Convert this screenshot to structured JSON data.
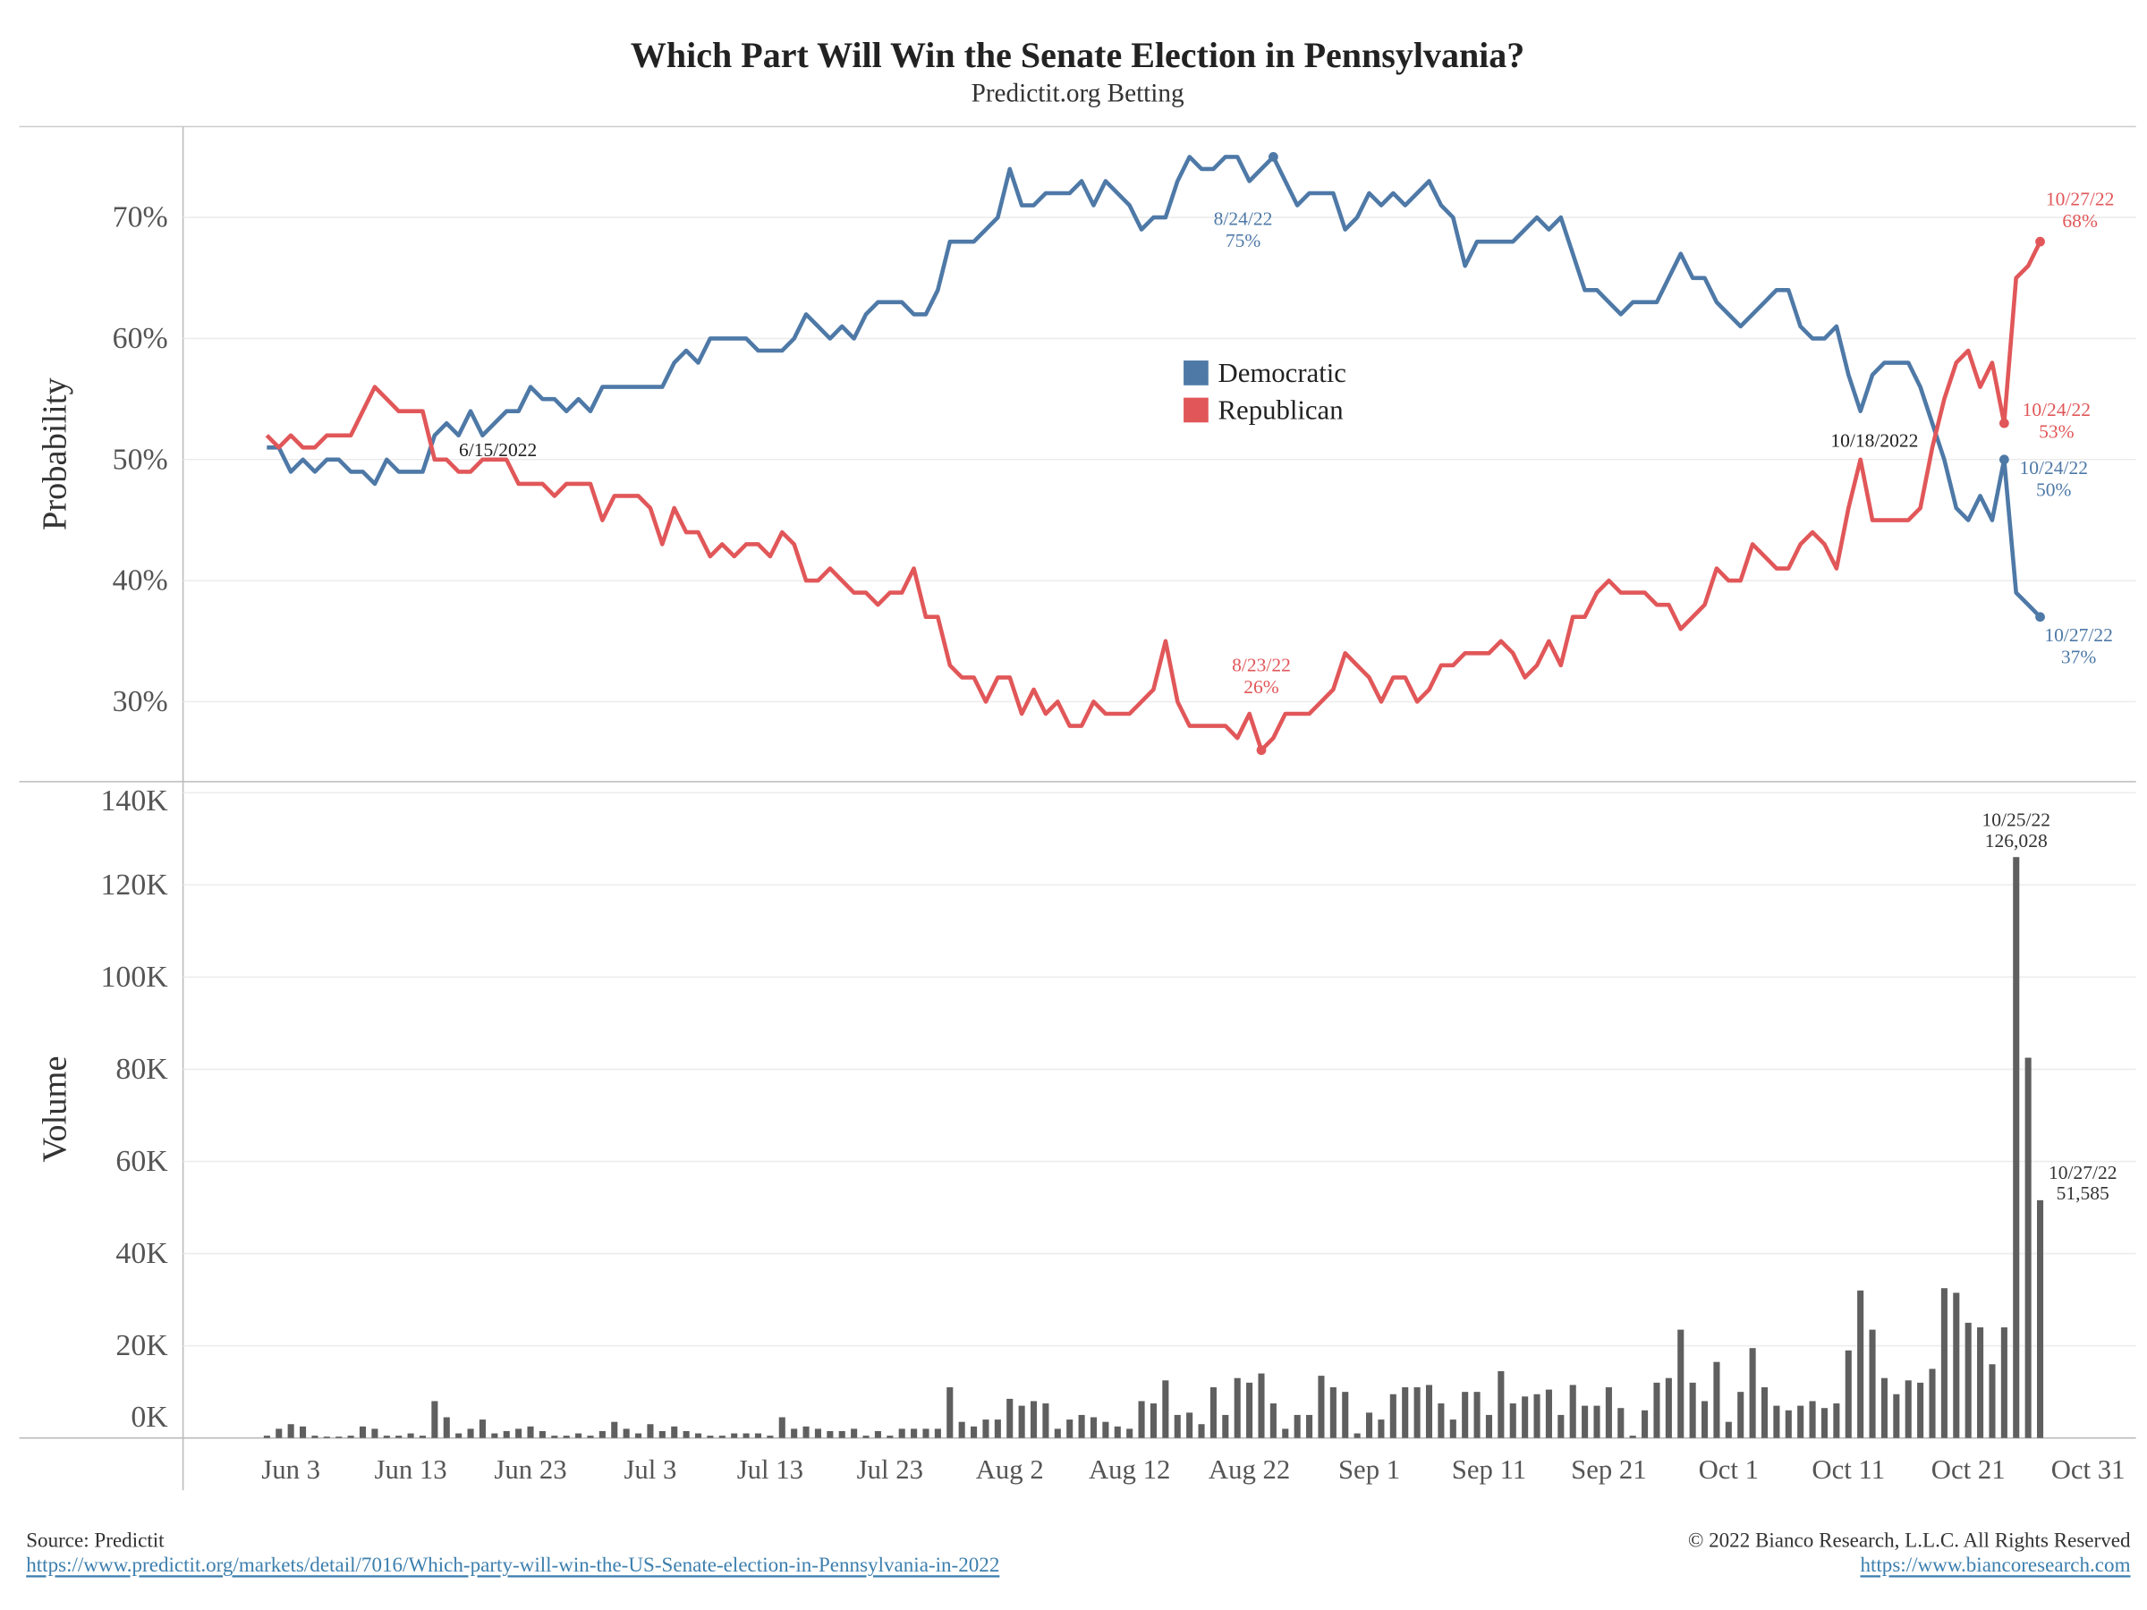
{
  "title": "Which Part Will Win the Senate Election in Pennsylvania?",
  "subtitle": "Predictit.org Betting",
  "source": "Source: Predictit",
  "source_url": "https://www.predictit.org/markets/detail/7016/Which-party-will-win-the-US-Senate-election-in-Pennsylvania-in-2022",
  "copyright": "© 2022 Bianco Research, L.L.C. All Rights Reserved",
  "site_url": "https://www.biancoresearch.com",
  "chart_data": [
    {
      "type": "line",
      "ylabel": "Probability",
      "legend": "center",
      "grid": true,
      "x": [
        "Jun 1",
        "Jun 2",
        "Jun 3",
        "Jun 4",
        "Jun 5",
        "Jun 6",
        "Jun 7",
        "Jun 8",
        "Jun 9",
        "Jun 10",
        "Jun 11",
        "Jun 12",
        "Jun 13",
        "Jun 14",
        "Jun 15",
        "Jun 16",
        "Jun 17",
        "Jun 18",
        "Jun 19",
        "Jun 20",
        "Jun 21",
        "Jun 22",
        "Jun 23",
        "Jun 24",
        "Jun 25",
        "Jun 26",
        "Jun 27",
        "Jun 28",
        "Jun 29",
        "Jun 30",
        "Jul 1",
        "Jul 2",
        "Jul 3",
        "Jul 4",
        "Jul 5",
        "Jul 6",
        "Jul 7",
        "Jul 8",
        "Jul 9",
        "Jul 10",
        "Jul 11",
        "Jul 12",
        "Jul 13",
        "Jul 14",
        "Jul 15",
        "Jul 16",
        "Jul 17",
        "Jul 18",
        "Jul 19",
        "Jul 20",
        "Jul 21",
        "Jul 22",
        "Jul 23",
        "Jul 24",
        "Jul 25",
        "Jul 26",
        "Jul 27",
        "Jul 28",
        "Jul 29",
        "Jul 30",
        "Jul 31",
        "Aug 1",
        "Aug 2",
        "Aug 3",
        "Aug 4",
        "Aug 5",
        "Aug 6",
        "Aug 7",
        "Aug 8",
        "Aug 9",
        "Aug 10",
        "Aug 11",
        "Aug 12",
        "Aug 13",
        "Aug 14",
        "Aug 15",
        "Aug 16",
        "Aug 17",
        "Aug 18",
        "Aug 19",
        "Aug 20",
        "Aug 21",
        "Aug 22",
        "Aug 23",
        "Aug 24",
        "Aug 25",
        "Aug 26",
        "Aug 27",
        "Aug 28",
        "Aug 29",
        "Aug 30",
        "Aug 31",
        "Sep 1",
        "Sep 2",
        "Sep 3",
        "Sep 4",
        "Sep 5",
        "Sep 6",
        "Sep 7",
        "Sep 8",
        "Sep 9",
        "Sep 10",
        "Sep 11",
        "Sep 12",
        "Sep 13",
        "Sep 14",
        "Sep 15",
        "Sep 16",
        "Sep 17",
        "Sep 18",
        "Sep 19",
        "Sep 20",
        "Sep 21",
        "Sep 22",
        "Sep 23",
        "Sep 24",
        "Sep 25",
        "Sep 26",
        "Sep 27",
        "Sep 28",
        "Sep 29",
        "Sep 30",
        "Oct 1",
        "Oct 2",
        "Oct 3",
        "Oct 4",
        "Oct 5",
        "Oct 6",
        "Oct 7",
        "Oct 8",
        "Oct 9",
        "Oct 10",
        "Oct 11",
        "Oct 12",
        "Oct 13",
        "Oct 14",
        "Oct 15",
        "Oct 16",
        "Oct 17",
        "Oct 18",
        "Oct 19",
        "Oct 20",
        "Oct 21",
        "Oct 22",
        "Oct 23",
        "Oct 24",
        "Oct 25",
        "Oct 26",
        "Oct 27"
      ],
      "xlim": [
        "May 25",
        "Nov 4"
      ],
      "ylim": [
        23.4,
        77.5
      ],
      "yticks": [
        {
          "value": 30,
          "label": "30%"
        },
        {
          "value": 40,
          "label": "40%"
        },
        {
          "value": 50,
          "label": "50%"
        },
        {
          "value": 60,
          "label": "60%"
        },
        {
          "value": 70,
          "label": "70%"
        }
      ],
      "series": [
        {
          "name": "Democratic",
          "color": "#4e79a7",
          "values": [
            51,
            51,
            49,
            50,
            49,
            50,
            50,
            49,
            49,
            48,
            50,
            49,
            49,
            49,
            52,
            53,
            52,
            54,
            52,
            53,
            54,
            54,
            56,
            55,
            55,
            54,
            55,
            54,
            56,
            56,
            56,
            56,
            56,
            56,
            58,
            59,
            58,
            60,
            60,
            60,
            60,
            59,
            59,
            59,
            60,
            62,
            61,
            60,
            61,
            60,
            62,
            63,
            63,
            63,
            62,
            62,
            64,
            68,
            68,
            68,
            69,
            70,
            74,
            71,
            71,
            72,
            72,
            72,
            73,
            71,
            73,
            72,
            71,
            69,
            70,
            70,
            73,
            75,
            74,
            74,
            75,
            75,
            73,
            74,
            75,
            73,
            71,
            72,
            72,
            72,
            69,
            70,
            72,
            71,
            72,
            71,
            72,
            73,
            71,
            70,
            66,
            68,
            68,
            68,
            68,
            69,
            70,
            69,
            70,
            67,
            64,
            64,
            63,
            62,
            63,
            63,
            63,
            65,
            67,
            65,
            65,
            63,
            62,
            61,
            62,
            63,
            64,
            64,
            61,
            60,
            60,
            61,
            57,
            54,
            57,
            58,
            58,
            58,
            56,
            53,
            50,
            46,
            45,
            47,
            45,
            50,
            39,
            38,
            37
          ],
          "annotations": [
            {
              "date": "8/24/22",
              "label": "75%"
            },
            {
              "date": "10/24/22",
              "label": "50%"
            },
            {
              "date": "10/27/22",
              "label": "37%"
            }
          ]
        },
        {
          "name": "Republican",
          "color": "#e15759",
          "values": [
            52,
            51,
            52,
            51,
            51,
            52,
            52,
            52,
            54,
            56,
            55,
            54,
            54,
            54,
            50,
            50,
            49,
            49,
            50,
            50,
            50,
            48,
            48,
            48,
            47,
            48,
            48,
            48,
            45,
            47,
            47,
            47,
            46,
            43,
            46,
            44,
            44,
            42,
            43,
            42,
            43,
            43,
            42,
            44,
            43,
            40,
            40,
            41,
            40,
            39,
            39,
            38,
            39,
            39,
            41,
            37,
            37,
            33,
            32,
            32,
            30,
            32,
            32,
            29,
            31,
            29,
            30,
            28,
            28,
            30,
            29,
            29,
            29,
            30,
            31,
            35,
            30,
            28,
            28,
            28,
            28,
            27,
            29,
            26,
            27,
            29,
            29,
            29,
            30,
            31,
            34,
            33,
            32,
            30,
            32,
            32,
            30,
            31,
            33,
            33,
            34,
            34,
            34,
            35,
            34,
            32,
            33,
            35,
            33,
            37,
            37,
            39,
            40,
            39,
            39,
            39,
            38,
            38,
            36,
            37,
            38,
            41,
            40,
            40,
            43,
            42,
            41,
            41,
            43,
            44,
            43,
            41,
            46,
            50,
            45,
            45,
            45,
            45,
            46,
            51,
            55,
            58,
            59,
            56,
            58,
            53,
            65,
            66,
            68
          ],
          "annotations": [
            {
              "date": "8/23/22",
              "label": "26%"
            },
            {
              "date": "10/24/22",
              "label": "53%"
            },
            {
              "date": "10/27/22",
              "label": "68%"
            }
          ]
        }
      ],
      "annotations": [
        {
          "date": "6/15/2022"
        },
        {
          "date": "10/18/2022"
        }
      ]
    },
    {
      "type": "bar",
      "ylabel": "Volume",
      "color": "#5f5f5f",
      "grid": true,
      "x": [
        "Jun 1",
        "Jun 2",
        "Jun 3",
        "Jun 4",
        "Jun 5",
        "Jun 6",
        "Jun 7",
        "Jun 8",
        "Jun 9",
        "Jun 10",
        "Jun 11",
        "Jun 12",
        "Jun 13",
        "Jun 14",
        "Jun 15",
        "Jun 16",
        "Jun 17",
        "Jun 18",
        "Jun 19",
        "Jun 20",
        "Jun 21",
        "Jun 22",
        "Jun 23",
        "Jun 24",
        "Jun 25",
        "Jun 26",
        "Jun 27",
        "Jun 28",
        "Jun 29",
        "Jun 30",
        "Jul 1",
        "Jul 2",
        "Jul 3",
        "Jul 4",
        "Jul 5",
        "Jul 6",
        "Jul 7",
        "Jul 8",
        "Jul 9",
        "Jul 10",
        "Jul 11",
        "Jul 12",
        "Jul 13",
        "Jul 14",
        "Jul 15",
        "Jul 16",
        "Jul 17",
        "Jul 18",
        "Jul 19",
        "Jul 20",
        "Jul 21",
        "Jul 22",
        "Jul 23",
        "Jul 24",
        "Jul 25",
        "Jul 26",
        "Jul 27",
        "Jul 28",
        "Jul 29",
        "Jul 30",
        "Jul 31",
        "Aug 1",
        "Aug 2",
        "Aug 3",
        "Aug 4",
        "Aug 5",
        "Aug 6",
        "Aug 7",
        "Aug 8",
        "Aug 9",
        "Aug 10",
        "Aug 11",
        "Aug 12",
        "Aug 13",
        "Aug 14",
        "Aug 15",
        "Aug 16",
        "Aug 17",
        "Aug 18",
        "Aug 19",
        "Aug 20",
        "Aug 21",
        "Aug 22",
        "Aug 23",
        "Aug 24",
        "Aug 25",
        "Aug 26",
        "Aug 27",
        "Aug 28",
        "Aug 29",
        "Aug 30",
        "Aug 31",
        "Sep 1",
        "Sep 2",
        "Sep 3",
        "Sep 4",
        "Sep 5",
        "Sep 6",
        "Sep 7",
        "Sep 8",
        "Sep 9",
        "Sep 10",
        "Sep 11",
        "Sep 12",
        "Sep 13",
        "Sep 14",
        "Sep 15",
        "Sep 16",
        "Sep 17",
        "Sep 18",
        "Sep 19",
        "Sep 20",
        "Sep 21",
        "Sep 22",
        "Sep 23",
        "Sep 24",
        "Sep 25",
        "Sep 26",
        "Sep 27",
        "Sep 28",
        "Sep 29",
        "Sep 30",
        "Oct 1",
        "Oct 2",
        "Oct 3",
        "Oct 4",
        "Oct 5",
        "Oct 6",
        "Oct 7",
        "Oct 8",
        "Oct 9",
        "Oct 10",
        "Oct 11",
        "Oct 12",
        "Oct 13",
        "Oct 14",
        "Oct 15",
        "Oct 16",
        "Oct 17",
        "Oct 18",
        "Oct 19",
        "Oct 20",
        "Oct 21",
        "Oct 22",
        "Oct 23",
        "Oct 24",
        "Oct 25",
        "Oct 26",
        "Oct 27"
      ],
      "xlim": [
        "May 25",
        "Nov 4"
      ],
      "xticks": [
        "Jun 3",
        "Jun 13",
        "Jun 23",
        "Jul 3",
        "Jul 13",
        "Jul 23",
        "Aug 2",
        "Aug 12",
        "Aug 22",
        "Sep 1",
        "Sep 11",
        "Sep 21",
        "Oct 1",
        "Oct 11",
        "Oct 21",
        "Oct 31"
      ],
      "ylim": [
        0,
        142400
      ],
      "yticks": [
        {
          "value": 0,
          "label": "0K"
        },
        {
          "value": 20000,
          "label": "20K"
        },
        {
          "value": 40000,
          "label": "40K"
        },
        {
          "value": 60000,
          "label": "60K"
        },
        {
          "value": 80000,
          "label": "80K"
        },
        {
          "value": 100000,
          "label": "100K"
        },
        {
          "value": 120000,
          "label": "120K"
        },
        {
          "value": 140000,
          "label": "140K"
        }
      ],
      "values": [
        500,
        2000,
        3000,
        2500,
        500,
        300,
        300,
        500,
        2500,
        2000,
        500,
        500,
        1000,
        500,
        8000,
        4500,
        1000,
        2000,
        4000,
        1000,
        1500,
        2000,
        2500,
        1500,
        500,
        500,
        1000,
        500,
        1500,
        3500,
        2000,
        1000,
        3000,
        1500,
        2500,
        1500,
        1000,
        500,
        500,
        1000,
        1000,
        1000,
        500,
        4500,
        2000,
        2500,
        2000,
        1500,
        1500,
        2000,
        500,
        1500,
        500,
        2000,
        2000,
        2000,
        2000,
        11000,
        3500,
        2500,
        4000,
        4000,
        8500,
        7000,
        8000,
        7500,
        2000,
        4000,
        5000,
        4500,
        3500,
        2500,
        2000,
        8000,
        7500,
        12500,
        5000,
        5500,
        3000,
        11000,
        5000,
        13000,
        12000,
        14000,
        7500,
        2000,
        5000,
        5000,
        13500,
        11000,
        10000,
        1000,
        5500,
        4000,
        9500,
        11000,
        11000,
        11500,
        7500,
        4000,
        10000,
        10000,
        5000,
        14500,
        7500,
        9000,
        9500,
        10500,
        5000,
        11500,
        7000,
        7000,
        11000,
        6500,
        500,
        6000,
        12000,
        13000,
        23500,
        12000,
        8000,
        16500,
        3500,
        10000,
        19500,
        11000,
        7000,
        6000,
        7000,
        8000,
        6500,
        7500,
        19000,
        32000,
        23500,
        13000,
        9500,
        12500,
        12000,
        15000,
        32500,
        31500,
        25000,
        24000,
        16000,
        24000,
        126028,
        82500,
        51585
      ],
      "annotations": [
        {
          "date": "10/25/22",
          "label": "126,028"
        },
        {
          "date": "10/27/22",
          "label": "51,585"
        }
      ]
    }
  ]
}
